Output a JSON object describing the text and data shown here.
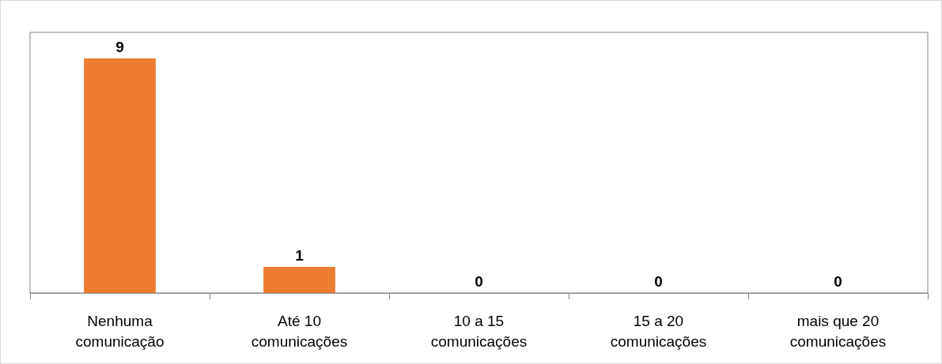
{
  "chart_data": {
    "type": "bar",
    "categories": [
      "Nenhuma\ncomunicação",
      "Até 10\ncomunicações",
      "10 a 15\ncomunicações",
      "15 a 20\ncomunicações",
      "mais que 20\ncomunicações"
    ],
    "values": [
      9,
      1,
      0,
      0,
      0
    ],
    "color": "#ed7d31",
    "data_labels": true
  }
}
